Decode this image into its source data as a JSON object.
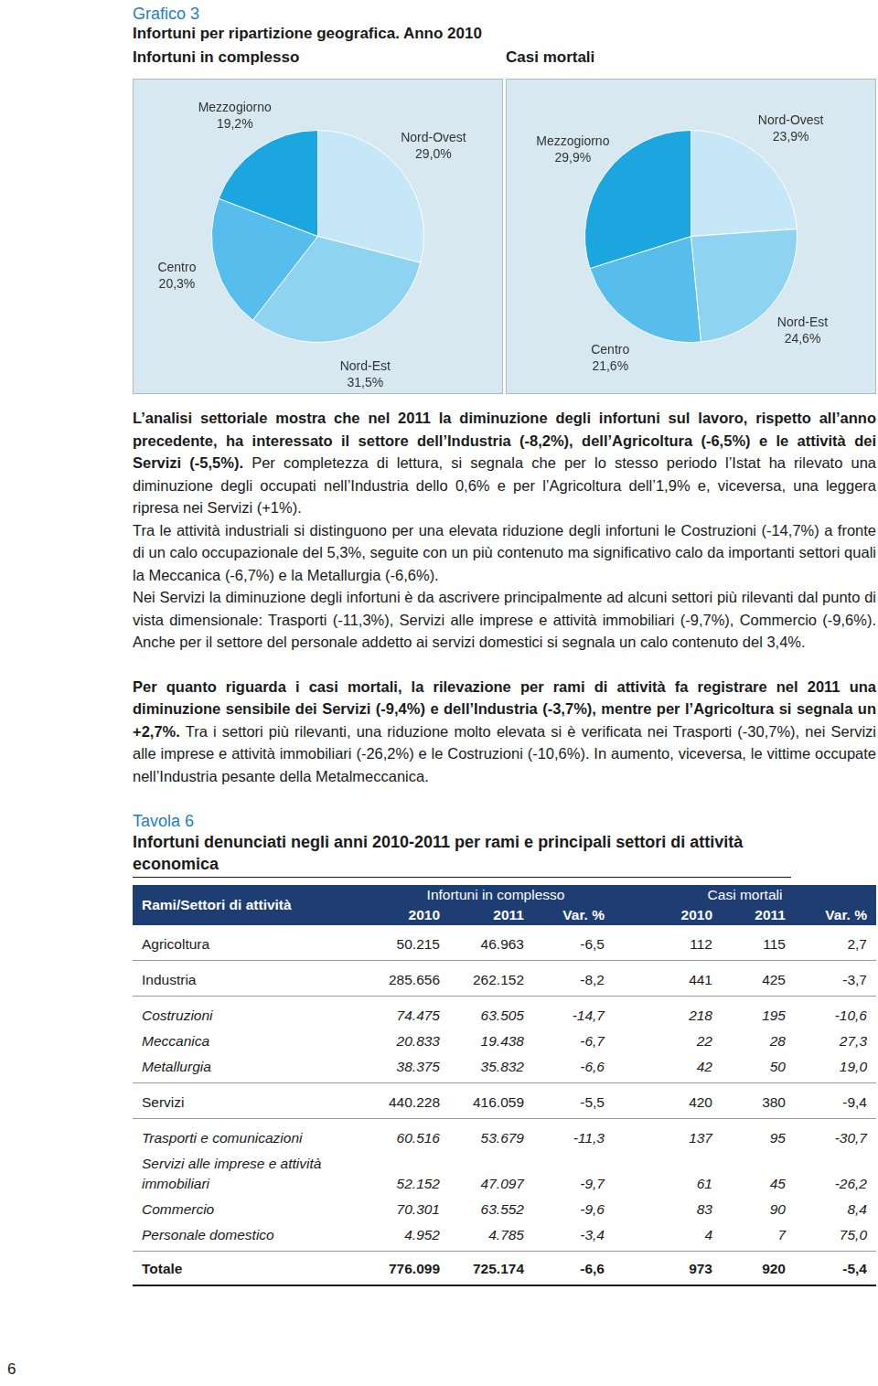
{
  "header": {
    "label": "Grafico 3",
    "title": "Infortuni per ripartizione geografica. Anno 2010"
  },
  "chart_data": [
    {
      "type": "pie",
      "title": "Infortuni in complesso",
      "categories": [
        "Nord-Ovest",
        "Nord-Est",
        "Centro",
        "Mezzogiorno"
      ],
      "values": [
        29.0,
        31.5,
        20.3,
        19.2
      ],
      "value_labels": [
        "29,0%",
        "31,5%",
        "20,3%",
        "19,2%"
      ],
      "colors": [
        "#c6e7f8",
        "#8fd3f3",
        "#56bdec",
        "#1ca6e0"
      ],
      "data_labels": true
    },
    {
      "type": "pie",
      "title": "Casi mortali",
      "categories": [
        "Nord-Ovest",
        "Nord-Est",
        "Centro",
        "Mezzogiorno"
      ],
      "values": [
        23.9,
        24.6,
        21.6,
        29.9
      ],
      "value_labels": [
        "23,9%",
        "24,6%",
        "21,6%",
        "29,9%"
      ],
      "colors": [
        "#c6e7f8",
        "#8fd3f3",
        "#56bdec",
        "#1ca6e0"
      ],
      "data_labels": true
    }
  ],
  "paragraphs": [
    [
      {
        "text": "L’analisi settoriale mostra che nel 2011 la diminuzione degli infortuni sul lavoro, rispetto all’anno precedente, ha interessato il settore dell’Industria (-8,2%), dell’Agricoltura (-6,5%) e le attività dei Servizi (-5,5%).",
        "bold": true
      },
      {
        "text": " Per completezza di lettura, si segnala che per lo stesso periodo l’Istat ha rilevato una diminuzione degli occupati nell’Industria dello 0,6% e per l’Agricoltura dell’1,9% e, viceversa, una leggera ripresa nei Servizi (+1%).",
        "bold": false
      }
    ],
    [
      {
        "text": "Tra le attività industriali si distinguono per una elevata riduzione degli infortuni le Costruzioni (-14,7%) a fronte di un calo occupazionale del 5,3%, seguite con un più contenuto ma significativo calo da importanti settori quali la Meccanica (-6,7%) e la Metallurgia (-6,6%).",
        "bold": false
      }
    ],
    [
      {
        "text": "Nei Servizi la diminuzione degli infortuni è da ascrivere principalmente ad alcuni settori più rilevanti dal punto di vista dimensionale: Trasporti (-11,3%), Servizi alle imprese e attività immobiliari (-9,7%), Commercio (-9,6%). Anche per il settore del personale addetto ai servizi domestici si segnala un calo contenuto del 3,4%.",
        "bold": false
      }
    ],
    [
      {
        "text": "Per quanto riguarda i casi mortali, la rilevazione per rami di attività fa registrare nel 2011 una diminuzione sensibile dei Servizi (-9,4%) e dell’Industria (-3,7%), mentre per l’Agricoltura si segnala un +2,7%.",
        "bold": true
      },
      {
        "text": " Tra i settori più rilevanti, una riduzione molto elevata si è verificata nei Trasporti (-30,7%), nei Servizi alle imprese e attività immobiliari (-26,2%) e le Costruzioni (-10,6%). In aumento, viceversa, le vittime occupate nell’Industria pesante della Metalmeccanica.",
        "bold": false
      }
    ]
  ],
  "table": {
    "label": "Tavola 6",
    "title": "Infortuni denunciati negli anni 2010-2011 per rami e principali settori di attività economica",
    "header": {
      "row_label": "Rami/Settori di attività",
      "groups": [
        "Infortuni in complesso",
        "Casi mortali"
      ],
      "columns": [
        "2010",
        "2011",
        "Var. %",
        "2010",
        "2011",
        "Var. %"
      ]
    },
    "groups": [
      [
        {
          "label": "Agricoltura",
          "italic": false,
          "cells": [
            "50.215",
            "46.963",
            "-6,5",
            "112",
            "115",
            "2,7"
          ]
        }
      ],
      [
        {
          "label": "Industria",
          "italic": false,
          "cells": [
            "285.656",
            "262.152",
            "-8,2",
            "441",
            "425",
            "-3,7"
          ]
        }
      ],
      [
        {
          "label": "Costruzioni",
          "italic": true,
          "cells": [
            "74.475",
            "63.505",
            "-14,7",
            "218",
            "195",
            "-10,6"
          ]
        },
        {
          "label": "Meccanica",
          "italic": true,
          "cells": [
            "20.833",
            "19.438",
            "-6,7",
            "22",
            "28",
            "27,3"
          ]
        },
        {
          "label": "Metallurgia",
          "italic": true,
          "cells": [
            "38.375",
            "35.832",
            "-6,6",
            "42",
            "50",
            "19,0"
          ]
        }
      ],
      [
        {
          "label": "Servizi",
          "italic": false,
          "cells": [
            "440.228",
            "416.059",
            "-5,5",
            "420",
            "380",
            "-9,4"
          ]
        }
      ],
      [
        {
          "label": "Trasporti e comunicazioni",
          "italic": true,
          "cells": [
            "60.516",
            "53.679",
            "-11,3",
            "137",
            "95",
            "-30,7"
          ]
        },
        {
          "label": "Servizi alle imprese e attività immobiliari",
          "italic": true,
          "cells": [
            "52.152",
            "47.097",
            "-9,7",
            "61",
            "45",
            "-26,2"
          ]
        },
        {
          "label": "Commercio",
          "italic": true,
          "cells": [
            "70.301",
            "63.552",
            "-9,6",
            "83",
            "90",
            "8,4"
          ]
        },
        {
          "label": "Personale domestico",
          "italic": true,
          "cells": [
            "4.952",
            "4.785",
            "-3,4",
            "4",
            "7",
            "75,0"
          ]
        }
      ]
    ],
    "total": {
      "label": "Totale",
      "cells": [
        "776.099",
        "725.174",
        "-6,6",
        "973",
        "920",
        "-5,4"
      ]
    }
  },
  "page_number": "6"
}
